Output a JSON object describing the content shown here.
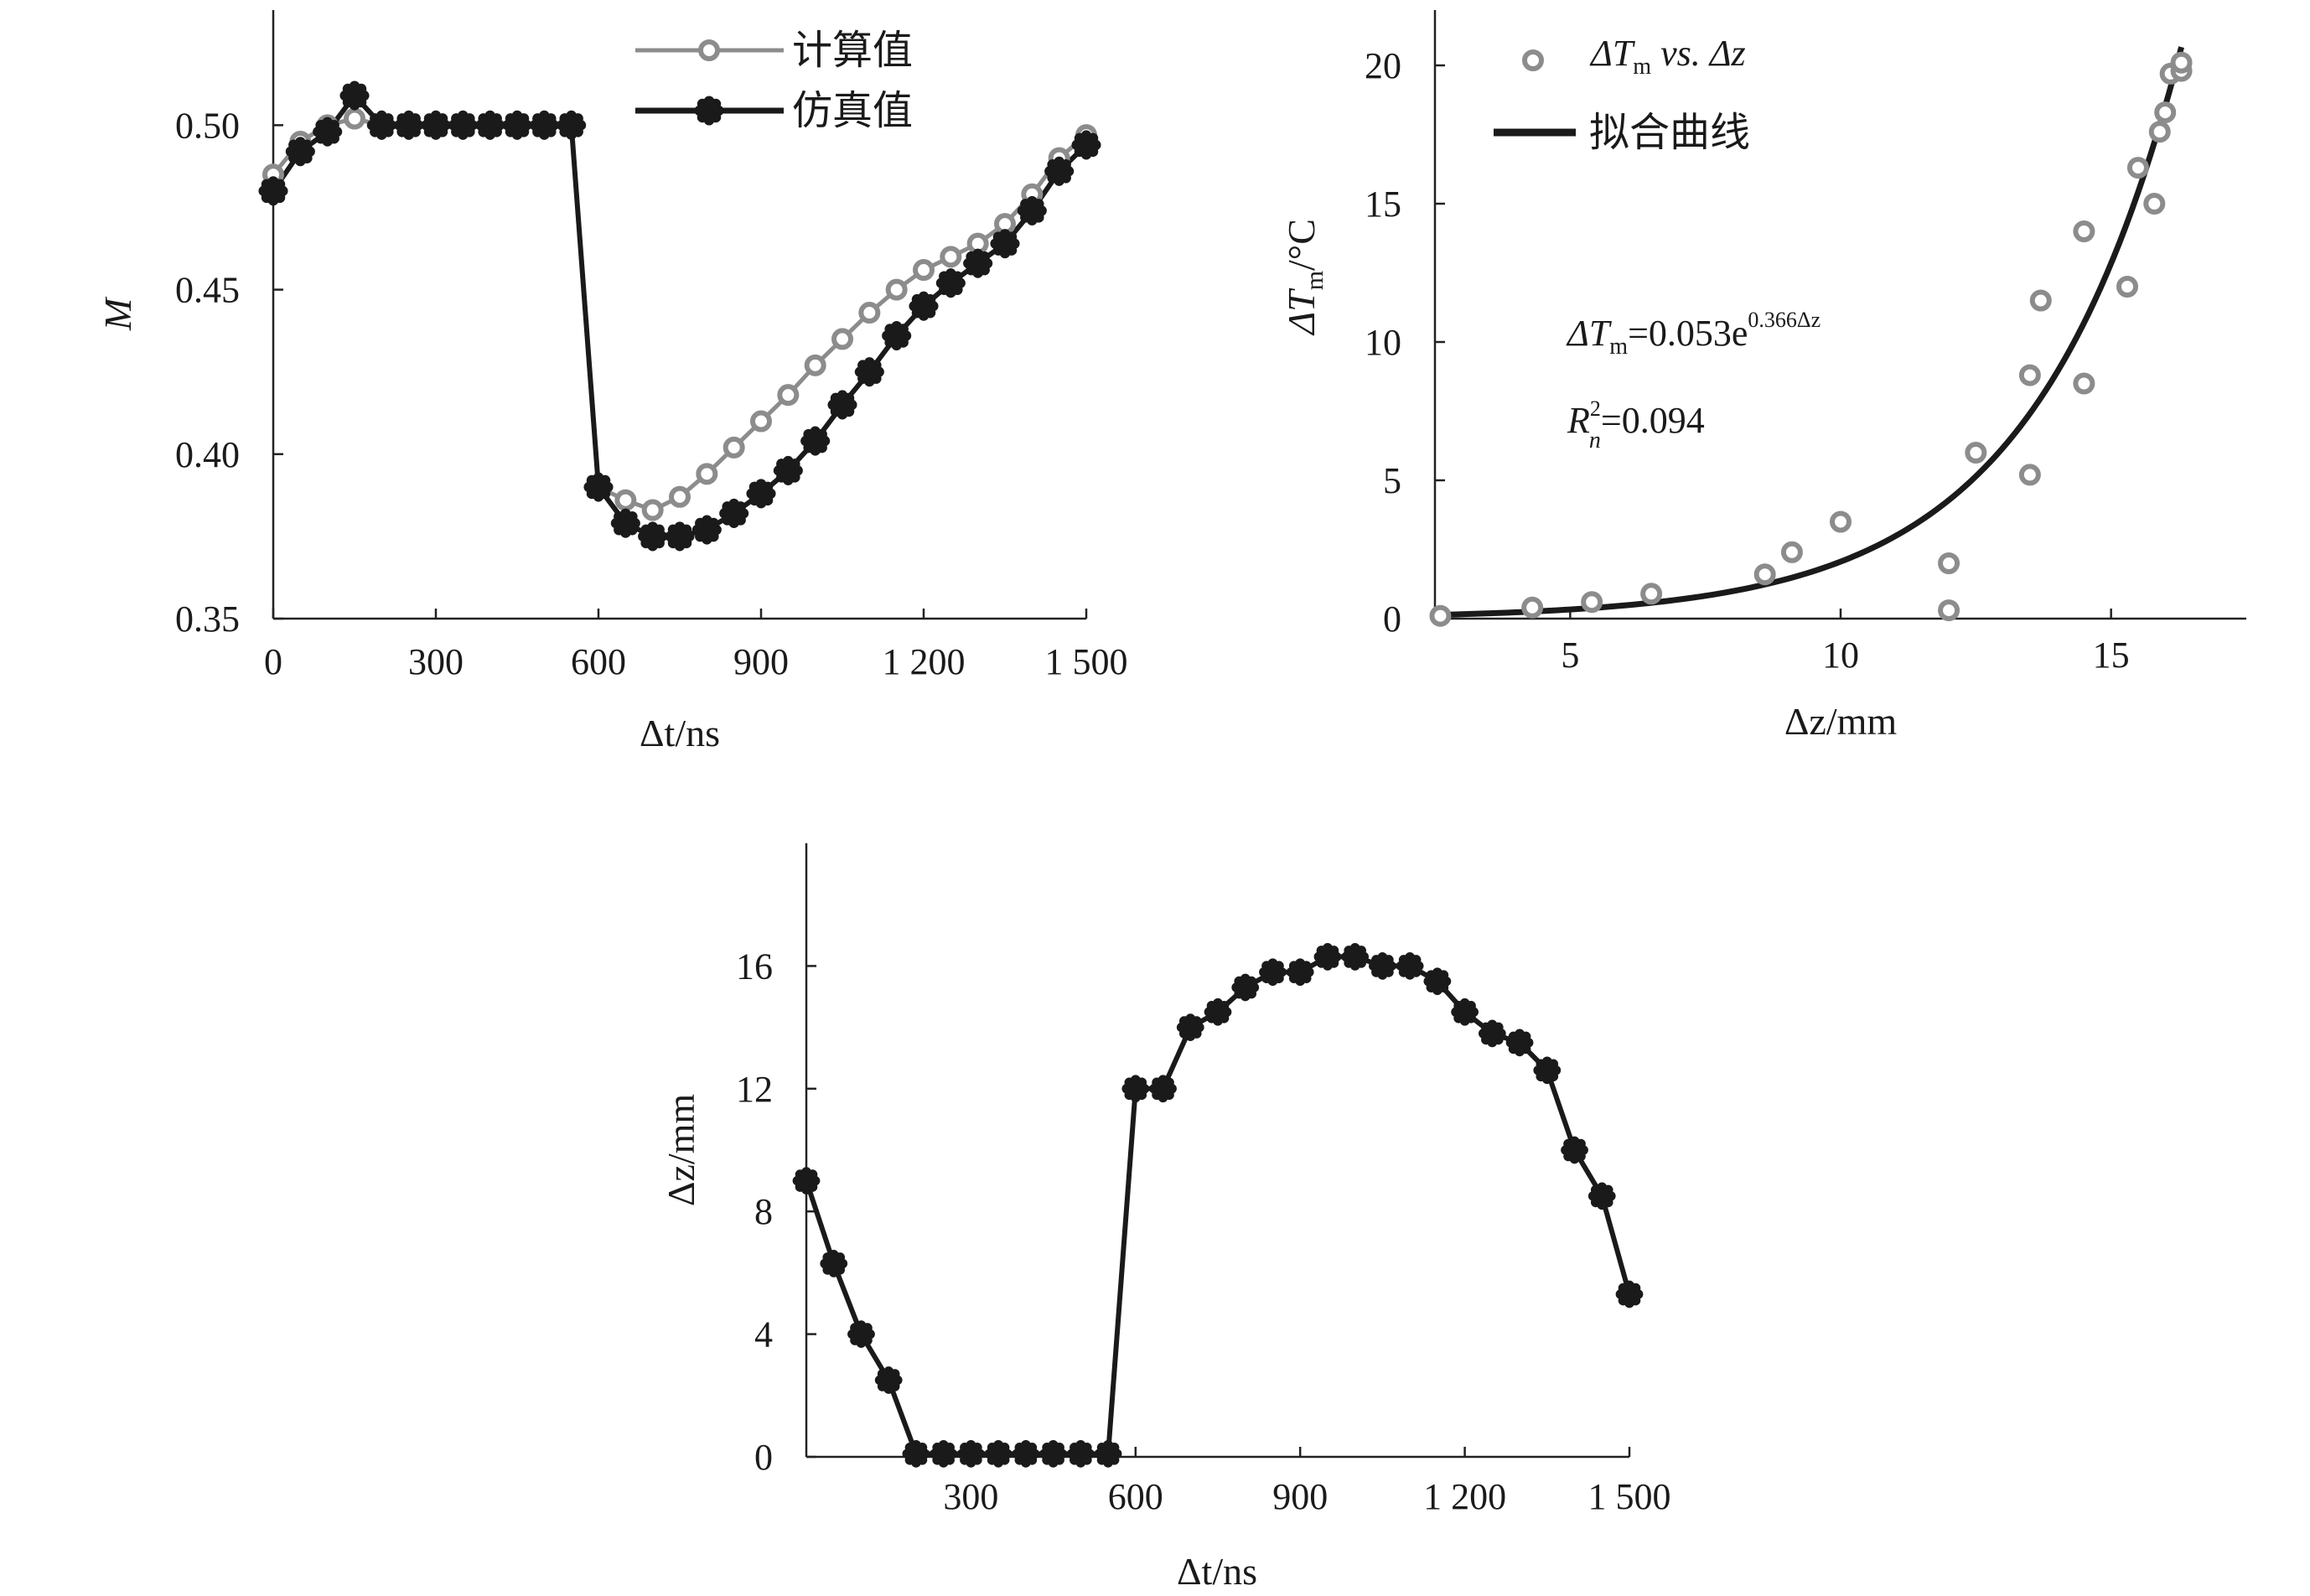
{
  "chart_data": [
    {
      "id": "left",
      "type": "line",
      "xlabel": "Δt/ns",
      "ylabel": "M",
      "xlim": [
        0,
        1500
      ],
      "ylim": [
        0.35,
        0.535
      ],
      "xticks": [
        0,
        300,
        600,
        900,
        1200,
        1500
      ],
      "xtick_labels": [
        "0",
        "300",
        "600",
        "900",
        "1 200",
        "1 500"
      ],
      "yticks": [
        0.35,
        0.4,
        0.45,
        0.5
      ],
      "ytick_labels": [
        "0.35",
        "0.40",
        "0.45",
        "0.50"
      ],
      "legend_position": "top-center",
      "series": [
        {
          "name": "计算值",
          "color": "#8c8c8c",
          "marker": "ring",
          "x": [
            0,
            50,
            100,
            150,
            200,
            250,
            300,
            350,
            400,
            450,
            500,
            550,
            600,
            650,
            700,
            750,
            800,
            850,
            900,
            950,
            1000,
            1050,
            1100,
            1150,
            1200,
            1250,
            1300,
            1350,
            1400,
            1450,
            1500
          ],
          "values": [
            0.485,
            0.495,
            0.5,
            0.502,
            0.5,
            0.5,
            0.5,
            0.5,
            0.5,
            0.5,
            0.5,
            0.5,
            0.39,
            0.386,
            0.383,
            0.387,
            0.394,
            0.402,
            0.41,
            0.418,
            0.427,
            0.435,
            0.443,
            0.45,
            0.456,
            0.46,
            0.464,
            0.47,
            0.479,
            0.49,
            0.497
          ]
        },
        {
          "name": "仿真值",
          "color": "#1a1a1a",
          "marker": "star",
          "x": [
            0,
            50,
            100,
            150,
            200,
            250,
            300,
            350,
            400,
            450,
            500,
            550,
            600,
            650,
            700,
            750,
            800,
            850,
            900,
            950,
            1000,
            1050,
            1100,
            1150,
            1200,
            1250,
            1300,
            1350,
            1400,
            1450,
            1500
          ],
          "values": [
            0.48,
            0.492,
            0.498,
            0.509,
            0.5,
            0.5,
            0.5,
            0.5,
            0.5,
            0.5,
            0.5,
            0.5,
            0.39,
            0.379,
            0.375,
            0.375,
            0.377,
            0.382,
            0.388,
            0.395,
            0.404,
            0.415,
            0.425,
            0.436,
            0.445,
            0.452,
            0.458,
            0.464,
            0.474,
            0.486,
            0.494
          ]
        }
      ]
    },
    {
      "id": "right",
      "type": "scatter",
      "xlabel": "Δz/mm",
      "ylabel": "ΔTm/°C",
      "xlim": [
        2.5,
        17.5
      ],
      "ylim": [
        0,
        22
      ],
      "xticks": [
        5,
        10,
        15
      ],
      "xtick_labels": [
        "5",
        "10",
        "15"
      ],
      "yticks": [
        0,
        5,
        10,
        15,
        20
      ],
      "ytick_labels": [
        "0",
        "5",
        "10",
        "15",
        "20"
      ],
      "legend_position": "top-left",
      "equation": "ΔTm=0.053e^(0.366Δz)",
      "r_squared": "Rn²=0.094",
      "series": [
        {
          "name": "ΔTm vs. Δz",
          "color": "#8c8c8c",
          "marker": "ring",
          "x": [
            2.6,
            4.3,
            5.4,
            6.5,
            8.6,
            9.1,
            10.0,
            12.0,
            12.0,
            12.5,
            13.5,
            13.5,
            13.7,
            14.5,
            14.5,
            15.3,
            15.5,
            15.8,
            15.9,
            16.0,
            16.1,
            16.3,
            16.3
          ],
          "values": [
            0.1,
            0.4,
            0.6,
            0.9,
            1.6,
            2.4,
            3.5,
            0.3,
            2.0,
            6.0,
            5.2,
            8.8,
            11.5,
            8.5,
            14.0,
            12.0,
            16.3,
            15.0,
            17.6,
            18.3,
            19.7,
            19.8,
            20.1
          ]
        },
        {
          "name": "拟合曲线",
          "color": "#1a1a1a",
          "type": "fit",
          "fit": {
            "a": 0.053,
            "b": 0.366,
            "xrange": [
              2.6,
              16.3
            ]
          }
        }
      ],
      "legend_labels": {
        "series1_prefix": "ΔT",
        "series1_sub": "m",
        "series1_suffix": " vs. Δz",
        "series2": "拟合曲线"
      },
      "annotation": {
        "eq_prefix": "ΔT",
        "eq_sub": "m",
        "eq_main": "=0.053e",
        "eq_sup": "0.366Δz",
        "r_prefix": "R",
        "r_sub": "n",
        "r_sup": "2",
        "r_value": "=0.094"
      },
      "ylabel_parts": {
        "prefix": "ΔT",
        "sub": "m",
        "suffix": "/°C"
      }
    },
    {
      "id": "bottom",
      "type": "line",
      "xlabel": "Δt/ns",
      "ylabel": "Δz/mm",
      "xlim": [
        0,
        1500
      ],
      "ylim": [
        0,
        20
      ],
      "xticks": [
        300,
        600,
        900,
        1200,
        1500
      ],
      "xtick_labels": [
        "300",
        "600",
        "900",
        "1 200",
        "1 500"
      ],
      "yticks": [
        0,
        4,
        8,
        12,
        16
      ],
      "ytick_labels": [
        "0",
        "4",
        "8",
        "12",
        "16"
      ],
      "series": [
        {
          "color": "#1a1a1a",
          "marker": "star",
          "x": [
            0,
            50,
            100,
            150,
            200,
            250,
            300,
            350,
            400,
            450,
            500,
            550,
            600,
            650,
            700,
            750,
            800,
            850,
            900,
            950,
            1000,
            1050,
            1100,
            1150,
            1200,
            1250,
            1300,
            1350,
            1400,
            1450,
            1500
          ],
          "values": [
            9.0,
            6.3,
            4.0,
            2.5,
            0.1,
            0.1,
            0.1,
            0.1,
            0.1,
            0.1,
            0.1,
            0.1,
            12.0,
            12.0,
            14.0,
            14.5,
            15.3,
            15.8,
            15.8,
            16.3,
            16.3,
            16.0,
            16.0,
            15.5,
            14.5,
            13.8,
            13.5,
            12.6,
            10.0,
            8.5,
            5.3
          ]
        }
      ]
    }
  ]
}
